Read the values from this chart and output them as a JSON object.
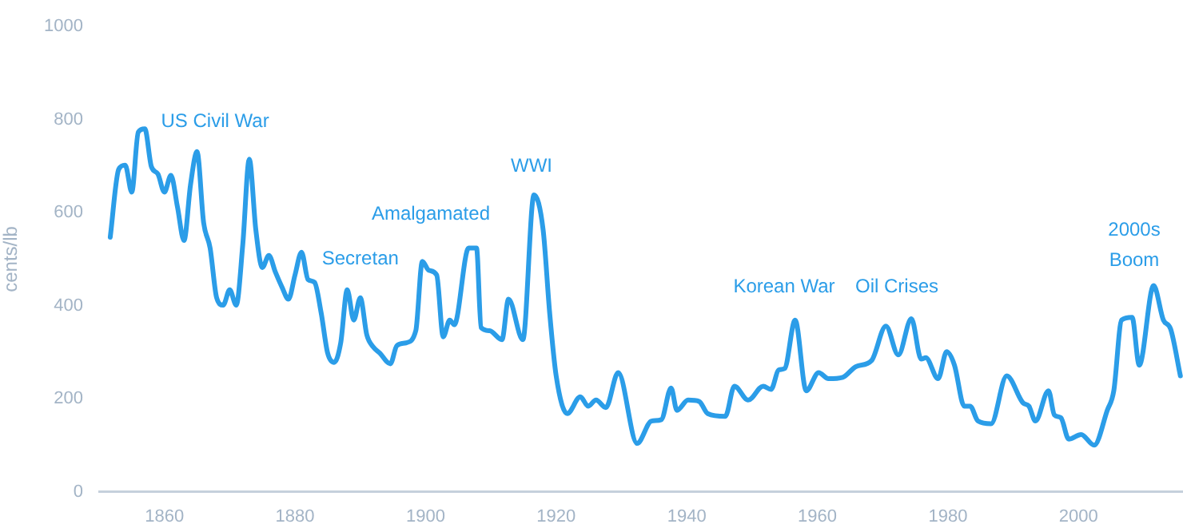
{
  "chart_data": {
    "type": "line",
    "ylabel": "cents/lb",
    "x": [
      1851.7,
      1853,
      1854,
      1855,
      1856,
      1857,
      1858,
      1859,
      1860,
      1861,
      1862,
      1863,
      1864,
      1865,
      1866,
      1867,
      1868,
      1869,
      1870,
      1871,
      1872,
      1873,
      1874,
      1875,
      1876,
      1877,
      1878,
      1879,
      1880,
      1881,
      1882,
      1883,
      1884,
      1885,
      1886,
      1887,
      1888,
      1889,
      1890,
      1891,
      1892,
      1893,
      1894.6,
      1895.6,
      1897,
      1898.5,
      1899.5,
      1900.5,
      1901.7,
      1902.7,
      1903.7,
      1904.4,
      1906.6,
      1907.8,
      1908.5,
      1909.8,
      1911.7,
      1912.7,
      1914.9,
      1916.6,
      1918,
      1919,
      1920,
      1921.7,
      1923.7,
      1924.9,
      1926.1,
      1927.6,
      1929.5,
      1932.4,
      1934.6,
      1936.1,
      1937.6,
      1938.5,
      1940.2,
      1941.9,
      1943.2,
      1945.9,
      1947.3,
      1949.4,
      1951.7,
      1952.9,
      1954.1,
      1955,
      1956.6,
      1958.3,
      1960.2,
      1961.7,
      1963.9,
      1965.9,
      1968.3,
      1970.5,
      1972.4,
      1974.4,
      1975.9,
      1976.6,
      1978.5,
      1979.8,
      1981,
      1982.5,
      1983.4,
      1984.6,
      1986.6,
      1989,
      1991.5,
      1992.4,
      1993.4,
      1995.4,
      1996.3,
      1997.3,
      1998.5,
      2000.4,
      2002.4,
      2004.4,
      2005.4,
      2006.6,
      2008.2,
      2009.3,
      2011.5,
      2013,
      2014.1,
      2015.6
    ],
    "series": [
      {
        "color": "#2b9de8",
        "values": [
          547,
          693,
          702,
          644,
          773,
          780,
          699,
          683,
          644,
          680,
          612,
          540,
          660,
          731,
          579,
          524,
          417,
          401,
          434,
          401,
          531,
          715,
          563,
          482,
          508,
          472,
          440,
          414,
          466,
          515,
          456,
          450,
          385,
          298,
          278,
          320,
          434,
          369,
          417,
          337,
          311,
          298,
          275,
          314,
          320,
          346,
          495,
          476,
          466,
          333,
          369,
          359,
          524,
          524,
          353,
          346,
          327,
          414,
          327,
          638,
          563,
          385,
          249,
          168,
          204,
          184,
          197,
          181,
          256,
          104,
          152,
          155,
          223,
          175,
          197,
          194,
          168,
          162,
          227,
          197,
          227,
          220,
          262,
          265,
          369,
          217,
          256,
          243,
          246,
          269,
          282,
          356,
          294,
          372,
          285,
          288,
          243,
          301,
          272,
          184,
          184,
          152,
          146,
          249,
          191,
          184,
          152,
          217,
          165,
          159,
          113,
          123,
          100,
          175,
          217,
          369,
          375,
          272,
          443,
          369,
          350,
          249
        ]
      }
    ],
    "xlim": [
      1850,
      2016
    ],
    "xticks": [
      1860,
      1880,
      1900,
      1920,
      1940,
      1960,
      1980,
      2000
    ],
    "ylim": [
      0,
      1000
    ],
    "yticks": [
      0,
      200,
      400,
      600,
      800,
      1000
    ],
    "grid": false,
    "legend": false,
    "marker": "none",
    "line_style": "solid",
    "annotations": [
      "US Civil War",
      "Secretan",
      "Amalgamated",
      "WWI",
      "Korean War",
      "Oil Crises",
      "2000s\nBoom"
    ]
  }
}
